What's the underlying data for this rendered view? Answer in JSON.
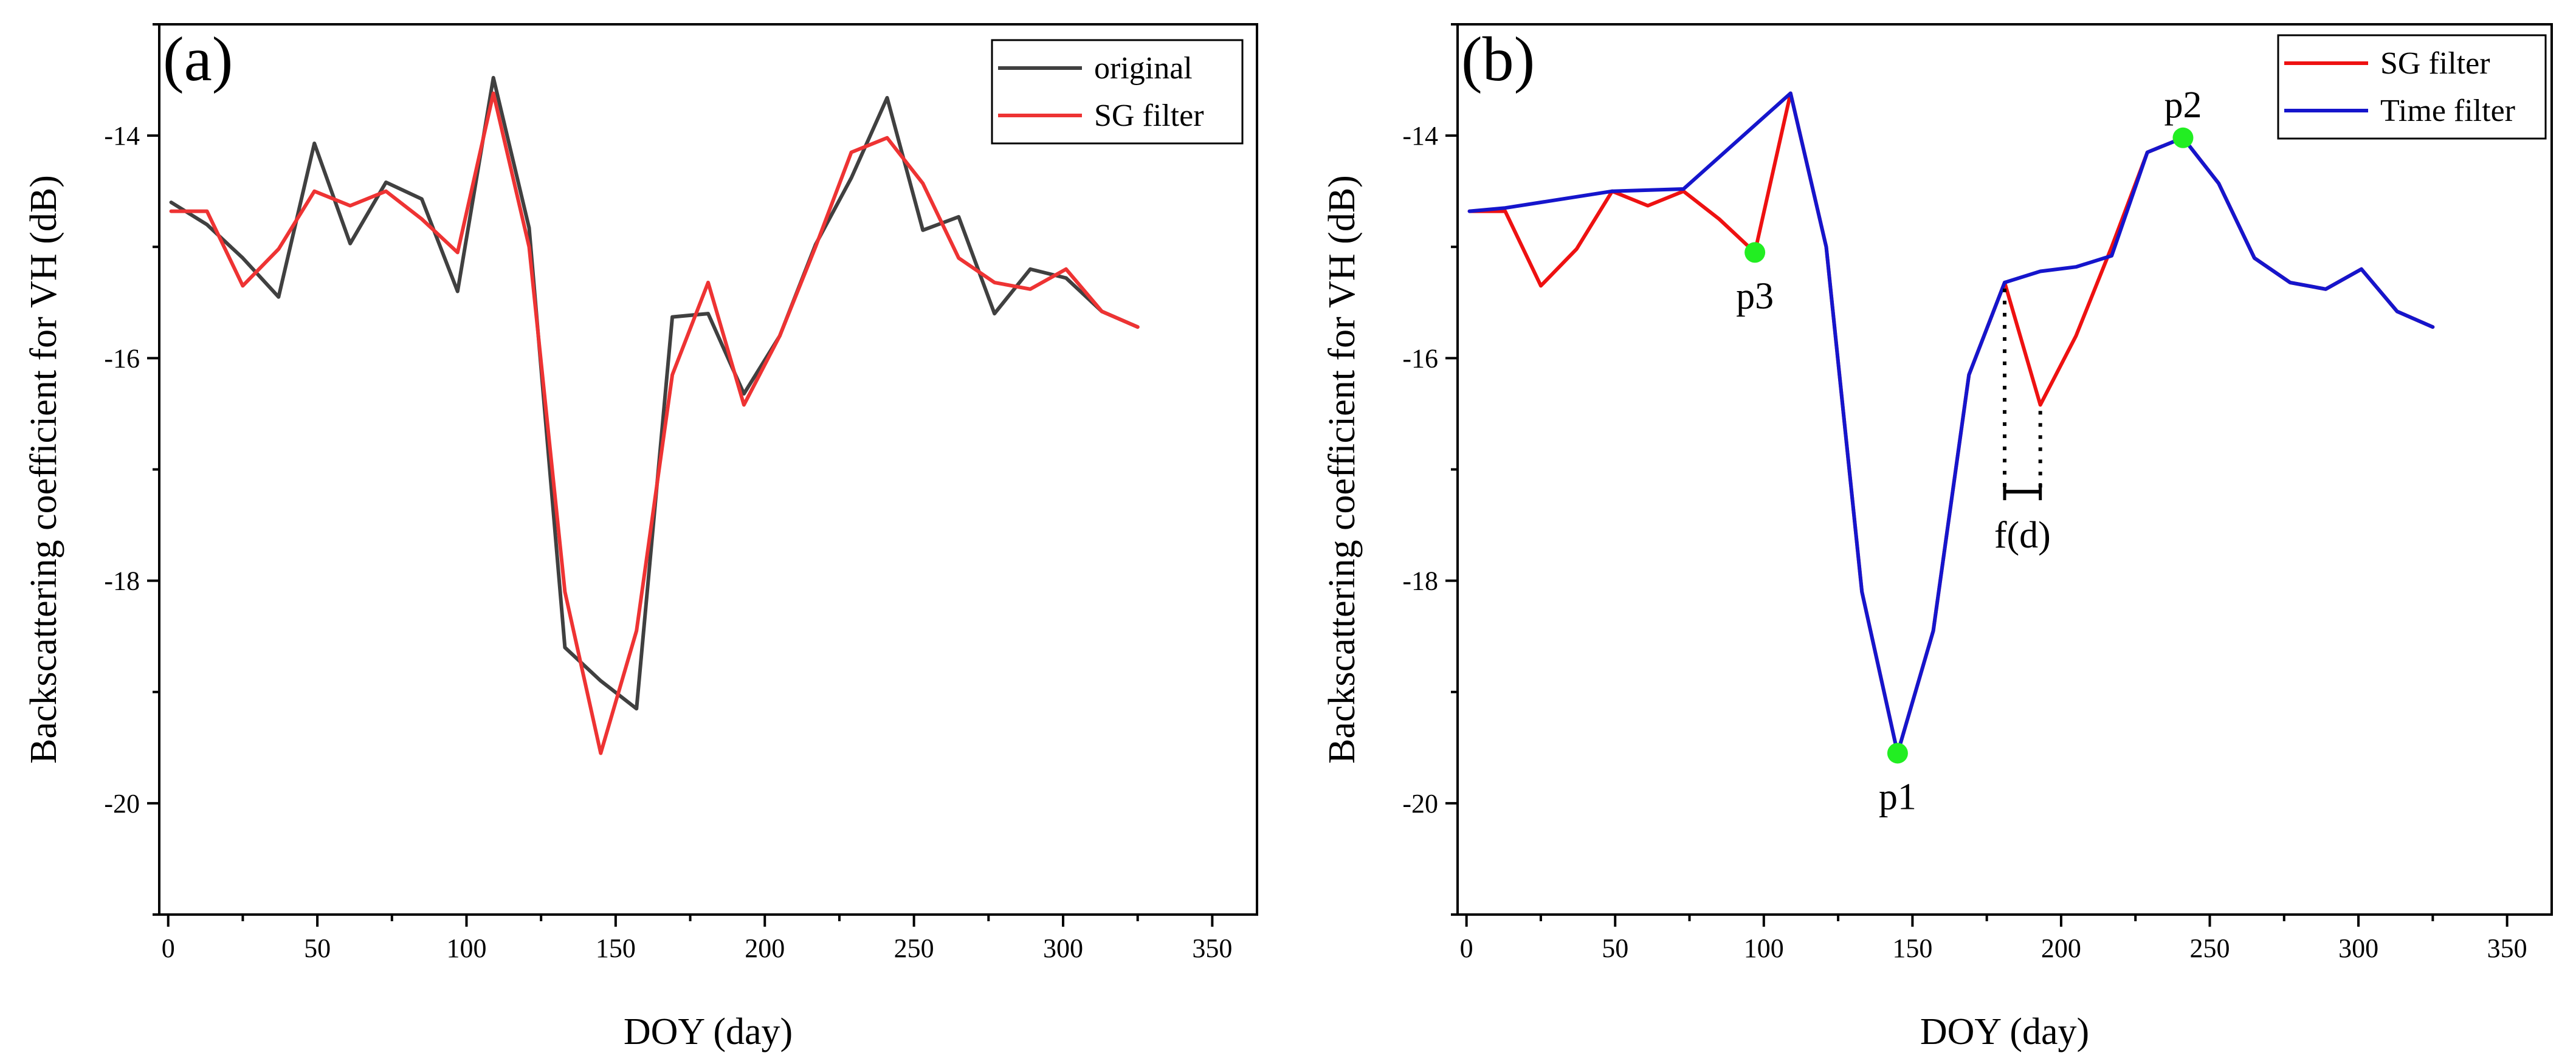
{
  "chart_data": [
    {
      "type": "line",
      "panel_label": "(a)",
      "xlabel": "DOY (day)",
      "ylabel": "Backscattering coefficient for VH (dB)",
      "xlim": [
        -3,
        365
      ],
      "ylim": [
        -21,
        -13
      ],
      "xticks": [
        0,
        50,
        100,
        150,
        200,
        250,
        300,
        350
      ],
      "xtick_labels": [
        "0",
        "50",
        "100",
        "150",
        "200",
        "250",
        "300",
        "350"
      ],
      "yticks": [
        -20,
        -18,
        -16,
        -14
      ],
      "ytick_labels": [
        "-20",
        "-18",
        "-16",
        "-14"
      ],
      "grid": false,
      "legend_position": "top-right",
      "series": [
        {
          "name": "original",
          "color": "#404040",
          "x": [
            1,
            13,
            25,
            37,
            49,
            61,
            73,
            85,
            97,
            109,
            121,
            133,
            145,
            157,
            169,
            181,
            193,
            205,
            217,
            229,
            241,
            253,
            265,
            277,
            289,
            301,
            313,
            325
          ],
          "y": [
            -14.6,
            -14.8,
            -15.1,
            -15.45,
            -14.07,
            -14.97,
            -14.42,
            -14.57,
            -15.4,
            -13.48,
            -14.83,
            -18.6,
            -18.9,
            -19.15,
            -15.63,
            -15.6,
            -16.32,
            -15.8,
            -14.98,
            -14.38,
            -13.66,
            -14.85,
            -14.73,
            -15.6,
            -15.2,
            -15.28,
            -15.58,
            -15.72
          ]
        },
        {
          "name": "SG filter",
          "color": "#EE3333",
          "x": [
            1,
            13,
            25,
            37,
            49,
            61,
            73,
            85,
            97,
            109,
            121,
            133,
            145,
            157,
            169,
            181,
            193,
            205,
            217,
            229,
            241,
            253,
            265,
            277,
            289,
            301,
            313,
            325
          ],
          "y": [
            -14.68,
            -14.68,
            -15.35,
            -15.02,
            -14.5,
            -14.63,
            -14.5,
            -14.75,
            -15.05,
            -13.62,
            -15.0,
            -18.1,
            -19.55,
            -18.45,
            -16.15,
            -15.32,
            -16.42,
            -15.8,
            -15.0,
            -14.15,
            -14.02,
            -14.43,
            -15.1,
            -15.32,
            -15.38,
            -15.2,
            -15.58,
            -15.72
          ]
        }
      ]
    },
    {
      "type": "line",
      "panel_label": "(b)",
      "xlabel": "DOY (day)",
      "ylabel": "Backscattering coefficient for VH (dB)",
      "xlim": [
        -3,
        365
      ],
      "ylim": [
        -21,
        -13
      ],
      "xticks": [
        0,
        50,
        100,
        150,
        200,
        250,
        300,
        350
      ],
      "xtick_labels": [
        "0",
        "50",
        "100",
        "150",
        "200",
        "250",
        "300",
        "350"
      ],
      "yticks": [
        -20,
        -18,
        -16,
        -14
      ],
      "ytick_labels": [
        "-20",
        "-18",
        "-16",
        "-14"
      ],
      "grid": false,
      "legend_position": "top-right",
      "series": [
        {
          "name": "SG filter",
          "color": "#EE1111",
          "x": [
            1,
            13,
            25,
            37,
            49,
            61,
            73,
            85,
            97,
            109,
            121,
            133,
            145,
            157,
            169,
            181,
            193,
            205,
            217,
            229,
            241,
            253,
            265,
            277,
            289,
            301,
            313,
            325
          ],
          "y": [
            -14.68,
            -14.68,
            -15.35,
            -15.02,
            -14.5,
            -14.63,
            -14.5,
            -14.75,
            -15.05,
            -13.62,
            -15.0,
            -18.1,
            -19.55,
            -18.45,
            -16.15,
            -15.32,
            -16.42,
            -15.8,
            -15.0,
            -14.15,
            -14.02,
            -14.43,
            -15.1,
            -15.32,
            -15.38,
            -15.2,
            -15.58,
            -15.72
          ]
        },
        {
          "name": "Time filter",
          "color": "#1515CC",
          "x": [
            1,
            13,
            49,
            73,
            109,
            121,
            133,
            145,
            157,
            169,
            181,
            193,
            205,
            217,
            229,
            241,
            253,
            265,
            277,
            289,
            301,
            313,
            325
          ],
          "y": [
            -14.68,
            -14.65,
            -14.5,
            -14.48,
            -13.62,
            -15.0,
            -18.1,
            -19.55,
            -18.45,
            -16.15,
            -15.32,
            -15.22,
            -15.18,
            -15.08,
            -14.15,
            -14.02,
            -14.43,
            -15.1,
            -15.32,
            -15.38,
            -15.2,
            -15.58,
            -15.72
          ]
        }
      ],
      "points": [
        {
          "label": "p1",
          "x": 145,
          "y": -19.55,
          "label_position": "below",
          "color": "#22EE22"
        },
        {
          "label": "p2",
          "x": 241,
          "y": -14.02,
          "label_position": "above",
          "color": "#22EE22"
        },
        {
          "label": "p3",
          "x": 97,
          "y": -15.05,
          "label_position": "below",
          "color": "#22EE22"
        }
      ],
      "interval_annotation": {
        "label": "f(d)",
        "x_start": 181,
        "x_end": 193,
        "y_start_left": -15.32,
        "y_start_right": -16.42,
        "y_bracket": -17.2
      }
    }
  ]
}
